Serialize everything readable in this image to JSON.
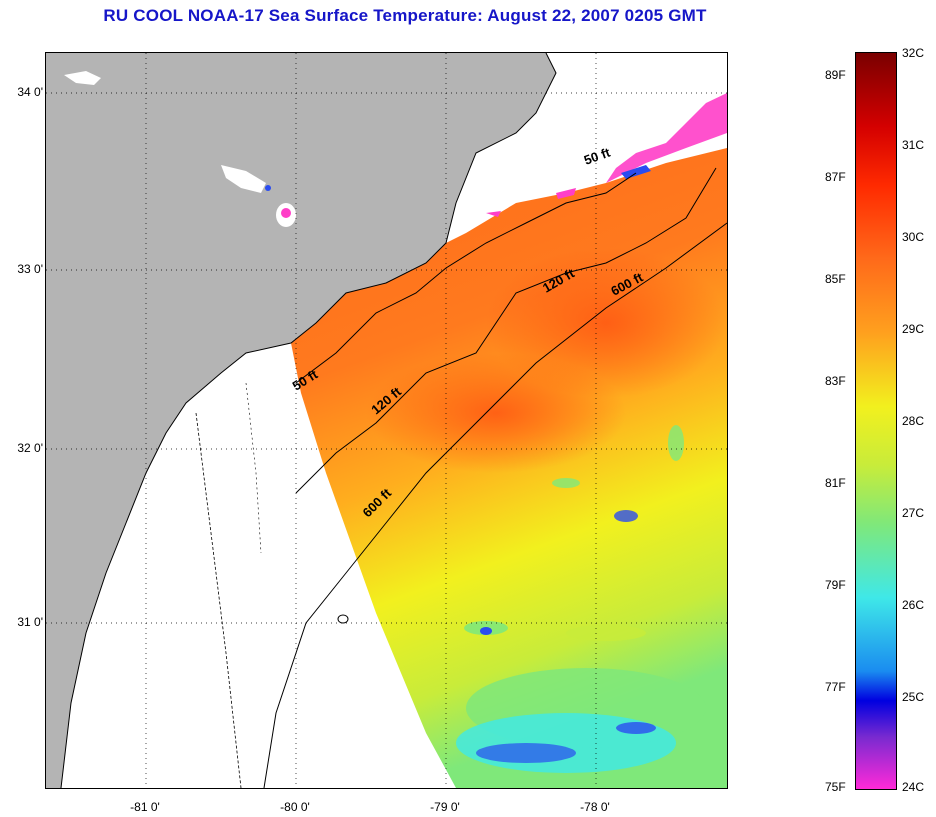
{
  "title": "RU COOL  NOAA-17  Sea Surface Temperature:  August 22, 2007 0205 GMT",
  "colors": {
    "land": "#b4b4b4",
    "title_blue": "#1616c8",
    "sea_warm": "#ff6a1a",
    "sea_mid": "#ffbe1e",
    "sea_yellow": "#f2f01e",
    "sea_green": "#7fe87a",
    "sea_cyan": "#3fe8e8",
    "sea_blue": "#2a4cf0",
    "sea_pink": "#ff3ec8"
  },
  "map": {
    "lat_labels": [
      "34 0'",
      "33 0'",
      "32 0'",
      "31 0'"
    ],
    "lon_labels": [
      "-81 0'",
      "-80 0'",
      "-79 0'",
      "-78 0'"
    ],
    "isobaths": {
      "ft50_a": "50 ft",
      "ft50_b": "50 ft",
      "ft120_a": "120 ft",
      "ft120_b": "120 ft",
      "ft600_a": "600 ft",
      "ft600_b": "600 ft"
    }
  },
  "colorbar": {
    "fahrenheit": [
      "89F",
      "87F",
      "85F",
      "83F",
      "81F",
      "79F",
      "77F",
      "75F"
    ],
    "celsius": [
      "32C",
      "31C",
      "30C",
      "29C",
      "28C",
      "27C",
      "26C",
      "25C",
      "24C"
    ],
    "range_c": [
      24,
      32
    ],
    "range_f": [
      75,
      89.6
    ]
  }
}
